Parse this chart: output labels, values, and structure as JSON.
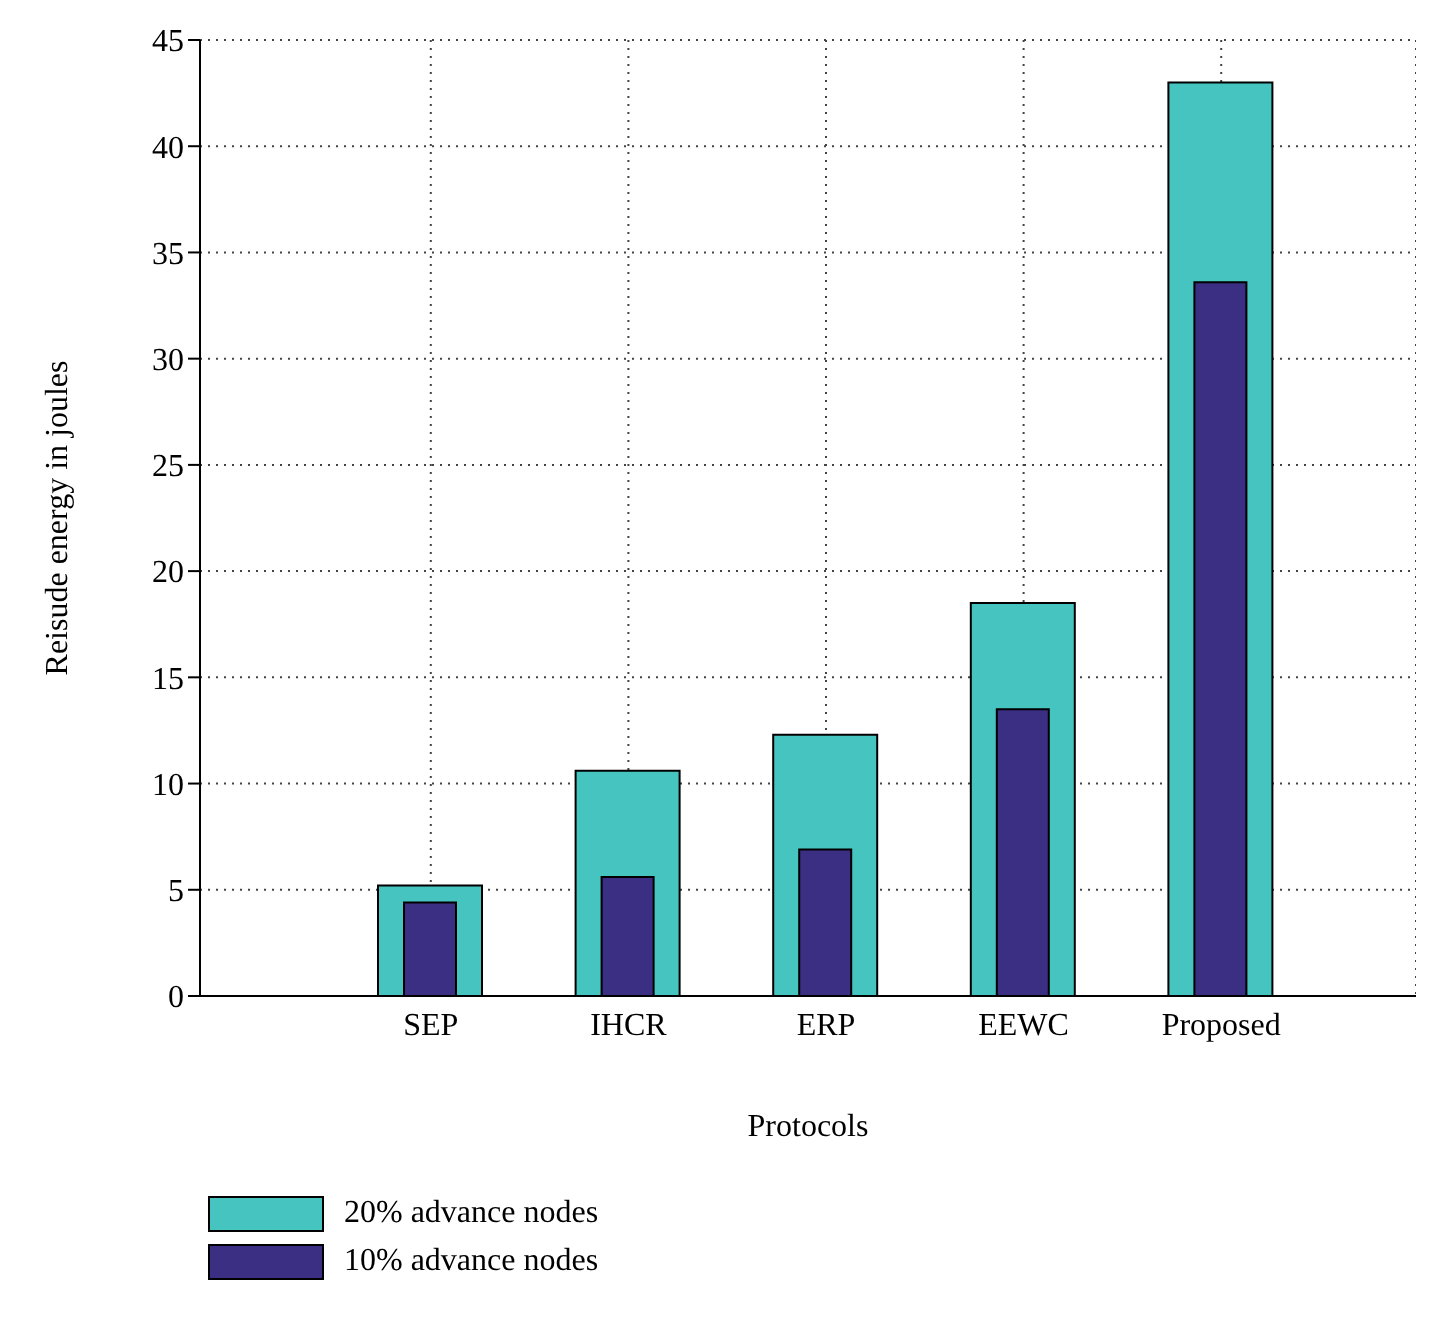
{
  "chart_data": {
    "type": "bar",
    "xlabel": "Protocols",
    "ylabel": "Reisude energy in joules",
    "categories": [
      "SEP",
      "IHCR",
      "ERP",
      "EEWC",
      "Proposed"
    ],
    "series": [
      {
        "name": "20% advance nodes",
        "color": "#45c4c0",
        "values": [
          5.2,
          10.6,
          12.3,
          18.5,
          43.0
        ]
      },
      {
        "name": "10% advance nodes",
        "color": "#3a2f82",
        "values": [
          4.4,
          5.6,
          6.9,
          13.5,
          33.6
        ]
      }
    ],
    "ylim": [
      0,
      45
    ],
    "yticks": [
      0,
      5,
      10,
      15,
      20,
      25,
      30,
      35,
      40,
      45
    ],
    "grid": true,
    "legend": "bottom left"
  }
}
